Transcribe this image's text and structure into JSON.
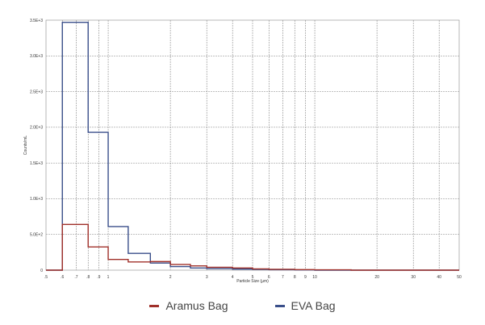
{
  "chart_data": {
    "type": "line",
    "step": true,
    "xscale": "log",
    "xlim": [
      0.5,
      50
    ],
    "ylim": [
      0,
      3500
    ],
    "xlabel": "Particle Size (µm)",
    "ylabel": "Counts/mL",
    "grid": true,
    "legend_position": "bottom",
    "x_ticks": [
      {
        "value": 0.5,
        "label": ".5"
      },
      {
        "value": 0.6,
        "label": ".6"
      },
      {
        "value": 0.7,
        "label": ".7"
      },
      {
        "value": 0.8,
        "label": ".8"
      },
      {
        "value": 0.9,
        "label": ".9"
      },
      {
        "value": 1,
        "label": "1"
      },
      {
        "value": 2,
        "label": "2"
      },
      {
        "value": 3,
        "label": "3"
      },
      {
        "value": 4,
        "label": "4"
      },
      {
        "value": 5,
        "label": "5"
      },
      {
        "value": 6,
        "label": "6"
      },
      {
        "value": 7,
        "label": "7"
      },
      {
        "value": 8,
        "label": "8"
      },
      {
        "value": 9,
        "label": "9"
      },
      {
        "value": 10,
        "label": "10"
      },
      {
        "value": 20,
        "label": "20"
      },
      {
        "value": 30,
        "label": "30"
      },
      {
        "value": 40,
        "label": "40"
      },
      {
        "value": 50,
        "label": "50"
      }
    ],
    "y_ticks": [
      {
        "value": 0,
        "label": "0"
      },
      {
        "value": 500,
        "label": "5.0E+2"
      },
      {
        "value": 1000,
        "label": "1.0E+3"
      },
      {
        "value": 1500,
        "label": "1.5E+3"
      },
      {
        "value": 2000,
        "label": "2.0E+3"
      },
      {
        "value": 2500,
        "label": "2.5E+3"
      },
      {
        "value": 3000,
        "label": "3.0E+3"
      },
      {
        "value": 3500,
        "label": "3.5E+3"
      }
    ],
    "series": [
      {
        "name": "Aramus Bag",
        "color": "#a0302a",
        "bins": [
          {
            "x0": 0.5,
            "x1": 0.6,
            "y": 0
          },
          {
            "x0": 0.6,
            "x1": 0.8,
            "y": 640
          },
          {
            "x0": 0.8,
            "x1": 1.0,
            "y": 325
          },
          {
            "x0": 1.0,
            "x1": 1.25,
            "y": 150
          },
          {
            "x0": 1.25,
            "x1": 1.6,
            "y": 115
          },
          {
            "x0": 1.6,
            "x1": 2.0,
            "y": 120
          },
          {
            "x0": 2.0,
            "x1": 2.5,
            "y": 80
          },
          {
            "x0": 2.5,
            "x1": 3.0,
            "y": 60
          },
          {
            "x0": 3.0,
            "x1": 4.0,
            "y": 40
          },
          {
            "x0": 4.0,
            "x1": 5.0,
            "y": 30
          },
          {
            "x0": 5.0,
            "x1": 6.0,
            "y": 18
          },
          {
            "x0": 6.0,
            "x1": 8.0,
            "y": 12
          },
          {
            "x0": 8.0,
            "x1": 10.0,
            "y": 8
          },
          {
            "x0": 10.0,
            "x1": 15.0,
            "y": 5
          },
          {
            "x0": 15.0,
            "x1": 50.0,
            "y": 0
          }
        ]
      },
      {
        "name": "EVA Bag",
        "color": "#3a4f8a",
        "bins": [
          {
            "x0": 0.5,
            "x1": 0.6,
            "y": 0
          },
          {
            "x0": 0.6,
            "x1": 0.8,
            "y": 3470
          },
          {
            "x0": 0.8,
            "x1": 1.0,
            "y": 1930
          },
          {
            "x0": 1.0,
            "x1": 1.25,
            "y": 610
          },
          {
            "x0": 1.25,
            "x1": 1.6,
            "y": 235
          },
          {
            "x0": 1.6,
            "x1": 2.0,
            "y": 100
          },
          {
            "x0": 2.0,
            "x1": 2.5,
            "y": 50
          },
          {
            "x0": 2.5,
            "x1": 3.0,
            "y": 30
          },
          {
            "x0": 3.0,
            "x1": 4.0,
            "y": 22
          },
          {
            "x0": 4.0,
            "x1": 5.0,
            "y": 15
          },
          {
            "x0": 5.0,
            "x1": 6.0,
            "y": 10
          },
          {
            "x0": 6.0,
            "x1": 8.0,
            "y": 6
          },
          {
            "x0": 8.0,
            "x1": 10.0,
            "y": 3
          },
          {
            "x0": 10.0,
            "x1": 50.0,
            "y": 0
          }
        ]
      }
    ]
  },
  "legend": {
    "items": [
      {
        "label": "Aramus Bag",
        "color": "#a0302a"
      },
      {
        "label": "EVA Bag",
        "color": "#3a4f8a"
      }
    ]
  }
}
